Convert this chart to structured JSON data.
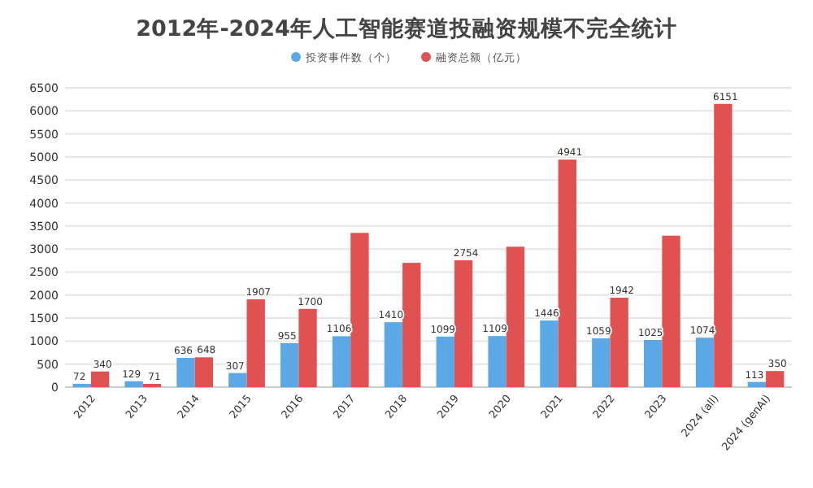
{
  "chart_data": {
    "type": "bar",
    "title": "2012年-2024年人工智能赛道投融资规模不完全统计",
    "categories": [
      "2012",
      "2013",
      "2014",
      "2015",
      "2016",
      "2017",
      "2018",
      "2019",
      "2020",
      "2021",
      "2022",
      "2023",
      "2024 (all)",
      "2024 (genAI)"
    ],
    "series": [
      {
        "name": "投资事件数（个）",
        "color": "#5aa9e6",
        "values": [
          72,
          129,
          636,
          307,
          955,
          1106,
          1410,
          1099,
          1109,
          1446,
          1059,
          1025,
          1074,
          113
        ],
        "value_labels": [
          "72",
          "129",
          "636",
          "307",
          "955",
          "1106",
          "1410",
          "1099",
          "1109",
          "1446",
          "1059",
          "1025",
          "1074",
          "113"
        ]
      },
      {
        "name": "融资总额（亿元）",
        "color": "#e05252",
        "values": [
          340,
          71,
          648,
          1907,
          1700,
          3350,
          2700,
          2754,
          3050,
          4941,
          1942,
          3290,
          6151,
          350
        ],
        "value_labels": [
          "340",
          "71",
          "648",
          "1907",
          "1700",
          null,
          null,
          "2754",
          null,
          "4941",
          "1942",
          null,
          "6151",
          "350"
        ]
      }
    ],
    "ylim": [
      0,
      6500
    ],
    "yticks": [
      0,
      500,
      1000,
      1500,
      2000,
      2500,
      3000,
      3500,
      4000,
      4500,
      5000,
      5500,
      6000,
      6500
    ],
    "grid": "y",
    "legend": "top"
  }
}
